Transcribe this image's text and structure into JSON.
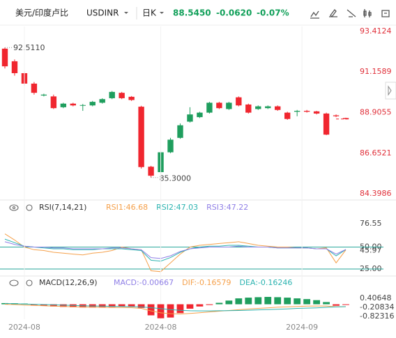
{
  "header": {
    "title": "美元/印度卢比",
    "symbol": "USDINR",
    "interval": "日K",
    "price": "88.5450",
    "change": "-0.0620",
    "change_pct": "-0.07%"
  },
  "chart_data": [
    {
      "type": "candlestick",
      "xlim": [
        -0.5,
        36
      ],
      "ylim": [
        84.13,
        93.68
      ],
      "yticks": [
        93.4124,
        91.1589,
        88.9055,
        86.6521,
        84.3986
      ],
      "up_color": "#1f9e5e",
      "down_color": "#f0262f",
      "price_line": true,
      "open": [
        92.45,
        91.75,
        91.09,
        90.51,
        89.85,
        89.8,
        89.2,
        89.4,
        89.3,
        89.3,
        89.45,
        89.7,
        90.0,
        89.78,
        89.23,
        85.9,
        85.6,
        86.7,
        87.5,
        88.4,
        88.65,
        88.9,
        89.45,
        89.1,
        89.75,
        89.35,
        89.1,
        89.15,
        89.25,
        88.9,
        88.95,
        89.0,
        88.97,
        88.85,
        88.75,
        88.6
      ],
      "high": [
        92.511,
        91.85,
        91.2,
        90.6,
        89.95,
        89.9,
        89.45,
        89.45,
        89.38,
        89.55,
        89.7,
        90.1,
        90.05,
        89.82,
        89.28,
        85.95,
        86.75,
        87.5,
        88.3,
        89.2,
        88.95,
        89.5,
        89.5,
        89.5,
        89.8,
        89.4,
        89.3,
        89.3,
        89.3,
        88.95,
        89.05,
        89.05,
        89.0,
        88.9,
        88.8,
        88.62
      ],
      "low": [
        91.35,
        90.95,
        90.4,
        89.9,
        89.8,
        89.1,
        89.15,
        89.25,
        89.0,
        89.25,
        89.4,
        89.65,
        89.65,
        89.55,
        85.8,
        85.3,
        85.5,
        86.65,
        87.45,
        88.35,
        88.6,
        88.85,
        89.1,
        89.05,
        89.25,
        88.85,
        89.05,
        89.1,
        89.0,
        88.5,
        88.7,
        88.9,
        88.8,
        87.65,
        88.65,
        88.52
      ],
      "close": [
        91.47,
        91.09,
        90.51,
        90.0,
        89.9,
        89.15,
        89.4,
        89.3,
        89.32,
        89.5,
        89.65,
        90.05,
        89.7,
        89.6,
        85.88,
        85.4,
        86.7,
        87.4,
        88.2,
        88.8,
        88.9,
        89.45,
        89.15,
        89.45,
        89.3,
        88.9,
        89.25,
        89.25,
        89.05,
        88.55,
        89.0,
        88.95,
        88.85,
        87.68,
        88.7,
        88.545
      ],
      "annotations": [
        {
          "label": "92.5110",
          "value": 92.511,
          "index": 0
        },
        {
          "label": "85.3000",
          "value": 85.3,
          "index": 15
        }
      ]
    },
    {
      "type": "line",
      "title": "RSI(7,14,21)",
      "xlim": [
        -0.5,
        36
      ],
      "ylim": [
        20.24,
        86.86
      ],
      "yticks": [
        76.55,
        {
          "value": 50,
          "label": "50.00"
        },
        45.97,
        {
          "value": 25,
          "label": "25.00"
        }
      ],
      "reference_lines": [
        50,
        25
      ],
      "reference_color": "#26a69a",
      "series": [
        {
          "name": "RSI1:46.68",
          "color": "#f5a04a",
          "values": [
            65,
            58,
            50,
            47,
            46,
            44,
            43,
            42,
            41,
            43,
            44,
            46,
            50,
            48,
            47,
            23,
            22,
            32,
            42,
            50,
            52,
            53,
            54,
            55,
            56,
            54,
            52,
            51,
            50,
            50,
            49,
            49,
            48,
            49,
            32,
            46.68
          ]
        },
        {
          "name": "RSI2:47.03",
          "color": "#2bb3b0",
          "values": [
            59,
            55,
            51,
            50,
            49,
            48,
            48,
            47,
            47,
            47,
            48,
            48,
            48,
            47,
            46,
            35,
            34,
            38,
            44,
            48,
            50,
            51,
            51,
            52,
            52,
            51,
            50,
            50,
            49,
            49,
            49,
            49,
            48,
            48,
            40,
            47.03
          ]
        },
        {
          "name": "RSI3:47.22",
          "color": "#8f7fe6",
          "values": [
            56,
            53,
            51,
            50,
            50,
            49,
            49,
            48,
            48,
            48,
            48,
            49,
            49,
            48,
            47,
            38,
            37,
            40,
            45,
            48,
            49,
            50,
            50,
            50,
            51,
            50,
            50,
            50,
            49,
            49,
            49,
            49,
            48,
            48,
            42,
            47.22
          ]
        }
      ]
    },
    {
      "type": "line",
      "title": "MACD(12,26,9)",
      "xlim": [
        -0.5,
        36
      ],
      "ylim": [
        -1.012,
        0.974
      ],
      "yticks": [
        0.40648,
        -0.20834,
        -0.82316
      ],
      "xticks": [
        {
          "value": 2,
          "label": "2024-08"
        },
        {
          "value": 16,
          "label": "2024-08"
        },
        {
          "value": 30.5,
          "label": "2024-09"
        }
      ],
      "bars": {
        "name": "MACD:-0.00667",
        "color": "#8f7fe6",
        "up_color": "#1f9e5e",
        "down_color": "#f0262f",
        "values": [
          0.08,
          0.07,
          0.05,
          -0.05,
          -0.1,
          -0.15,
          -0.18,
          -0.2,
          -0.22,
          -0.22,
          -0.2,
          -0.18,
          -0.15,
          -0.15,
          -0.25,
          -0.75,
          -0.95,
          -0.9,
          -0.6,
          -0.3,
          -0.15,
          -0.05,
          0.1,
          0.25,
          0.4,
          0.45,
          0.48,
          0.5,
          0.48,
          0.45,
          0.4,
          0.35,
          0.28,
          0.15,
          -0.1,
          -0.00667
        ]
      },
      "series": [
        {
          "name": "DIF:-0.16579",
          "color": "#f5a04a",
          "values": [
            0.0,
            -0.02,
            -0.05,
            -0.08,
            -0.1,
            -0.13,
            -0.15,
            -0.17,
            -0.19,
            -0.2,
            -0.21,
            -0.22,
            -0.22,
            -0.23,
            -0.28,
            -0.45,
            -0.58,
            -0.64,
            -0.66,
            -0.62,
            -0.57,
            -0.52,
            -0.47,
            -0.42,
            -0.37,
            -0.32,
            -0.28,
            -0.24,
            -0.2,
            -0.17,
            -0.15,
            -0.13,
            -0.12,
            -0.12,
            -0.17,
            -0.16579
          ]
        },
        {
          "name": "DEA:-0.16246",
          "color": "#2bb3b0",
          "values": [
            0.05,
            0.04,
            0.02,
            0.0,
            -0.02,
            -0.04,
            -0.06,
            -0.08,
            -0.1,
            -0.12,
            -0.13,
            -0.14,
            -0.15,
            -0.16,
            -0.18,
            -0.23,
            -0.3,
            -0.36,
            -0.41,
            -0.44,
            -0.45,
            -0.45,
            -0.44,
            -0.43,
            -0.42,
            -0.4,
            -0.38,
            -0.36,
            -0.34,
            -0.31,
            -0.28,
            -0.26,
            -0.24,
            -0.21,
            -0.18,
            -0.16246
          ]
        }
      ]
    }
  ]
}
